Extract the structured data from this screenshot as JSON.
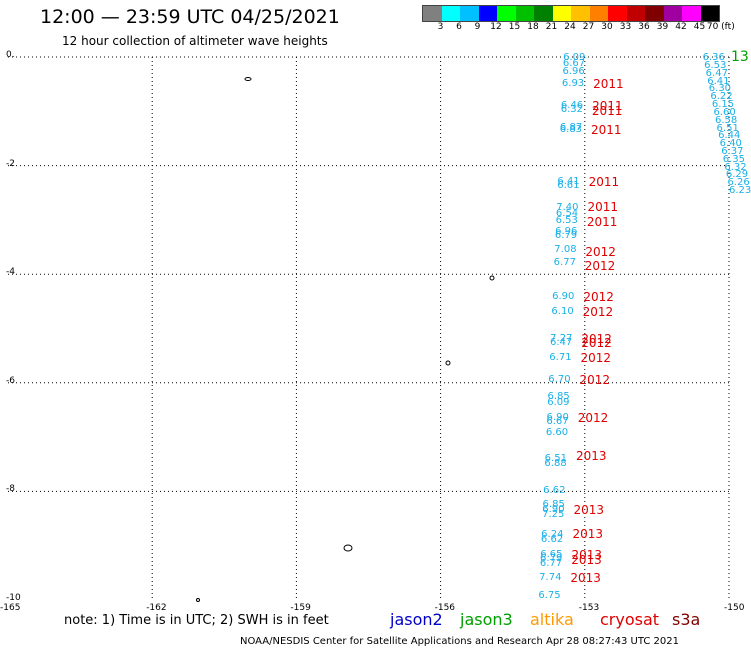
{
  "title": "12:00 — 23:59 UTC 04/25/2021",
  "subtitle": "12 hour collection of altimeter wave heights",
  "legend": {
    "colors": [
      "#808080",
      "#00ffff",
      "#00c0ff",
      "#0000ff",
      "#00ff00",
      "#00c000",
      "#008000",
      "#ffff00",
      "#ffc000",
      "#ff8000",
      "#ff0000",
      "#c00000",
      "#800000",
      "#a000a0",
      "#ff00ff",
      "#000000"
    ],
    "labels": [
      "3",
      "6",
      "9",
      "12",
      "15",
      "18",
      "21",
      "24",
      "27",
      "30",
      "33",
      "36",
      "39",
      "42",
      "45",
      "70 (ft)"
    ]
  },
  "axes": {
    "x_ticks": [
      "-165",
      "-162",
      "-159",
      "-156",
      "-153",
      "-150"
    ],
    "y_ticks": [
      "0.",
      "-2",
      "-4",
      "-6",
      "-8",
      "-10"
    ]
  },
  "observations_main": [
    {
      "lat": -0.02,
      "v": "6.09"
    },
    {
      "lat": -0.13,
      "v": "6.67"
    },
    {
      "lat": -0.27,
      "v": "6.96"
    },
    {
      "lat": -0.5,
      "v": "6.93"
    },
    {
      "lat": -0.9,
      "v": "6.46"
    },
    {
      "lat": -0.98,
      "v": "6.32"
    },
    {
      "lat": -1.3,
      "v": "6.87"
    },
    {
      "lat": -1.35,
      "v": "6.83"
    },
    {
      "lat": -2.3,
      "v": "6.41"
    },
    {
      "lat": -2.37,
      "v": "6.61"
    },
    {
      "lat": -2.78,
      "v": "7.40"
    },
    {
      "lat": -2.9,
      "v": "6.54"
    },
    {
      "lat": -3.02,
      "v": "6.53"
    },
    {
      "lat": -3.22,
      "v": "6.96"
    },
    {
      "lat": -3.3,
      "v": "6.79"
    },
    {
      "lat": -3.55,
      "v": "7.08"
    },
    {
      "lat": -3.8,
      "v": "6.77"
    },
    {
      "lat": -4.42,
      "v": "6.90"
    },
    {
      "lat": -4.7,
      "v": "6.10"
    },
    {
      "lat": -5.2,
      "v": "7.27"
    },
    {
      "lat": -5.27,
      "v": "6.47"
    },
    {
      "lat": -5.55,
      "v": "6.71"
    },
    {
      "lat": -5.95,
      "v": "6.70"
    },
    {
      "lat": -6.27,
      "v": "6.85"
    },
    {
      "lat": -6.37,
      "v": "6.09"
    },
    {
      "lat": -6.65,
      "v": "6.90"
    },
    {
      "lat": -6.73,
      "v": "6.67"
    },
    {
      "lat": -6.93,
      "v": "6.60"
    },
    {
      "lat": -7.4,
      "v": "6.51"
    },
    {
      "lat": -7.5,
      "v": "6.88"
    },
    {
      "lat": -8.0,
      "v": "6.62"
    },
    {
      "lat": -8.25,
      "v": "6.85"
    },
    {
      "lat": -8.35,
      "v": "6.90"
    },
    {
      "lat": -8.43,
      "v": "7.25"
    },
    {
      "lat": -8.8,
      "v": "6.24"
    },
    {
      "lat": -8.9,
      "v": "6.62"
    },
    {
      "lat": -9.17,
      "v": "6.65"
    },
    {
      "lat": -9.25,
      "v": "6.79"
    },
    {
      "lat": -9.33,
      "v": "6.77"
    },
    {
      "lat": -9.6,
      "v": "7.74"
    },
    {
      "lat": -9.93,
      "v": "6.75"
    }
  ],
  "year_labels": [
    {
      "lat": -0.5,
      "v": "2011"
    },
    {
      "lat": -0.9,
      "v": "2011"
    },
    {
      "lat": -1.0,
      "v": "2011"
    },
    {
      "lat": -1.35,
      "v": "2011"
    },
    {
      "lat": -2.3,
      "v": "2011"
    },
    {
      "lat": -2.77,
      "v": "2011"
    },
    {
      "lat": -3.03,
      "v": "2011"
    },
    {
      "lat": -3.6,
      "v": "2012"
    },
    {
      "lat": -3.85,
      "v": "2012"
    },
    {
      "lat": -4.42,
      "v": "2012"
    },
    {
      "lat": -4.7,
      "v": "2012"
    },
    {
      "lat": -5.2,
      "v": "2012"
    },
    {
      "lat": -5.27,
      "v": "2012"
    },
    {
      "lat": -5.55,
      "v": "2012"
    },
    {
      "lat": -5.95,
      "v": "2012"
    },
    {
      "lat": -6.65,
      "v": "2012"
    },
    {
      "lat": -7.35,
      "v": "2013"
    },
    {
      "lat": -8.35,
      "v": "2013"
    },
    {
      "lat": -8.78,
      "v": "2013"
    },
    {
      "lat": -9.17,
      "v": "2013"
    },
    {
      "lat": -9.27,
      "v": "2013"
    },
    {
      "lat": -9.6,
      "v": "2013"
    }
  ],
  "observations_diag": [
    "6.36",
    "6.53",
    "6.47",
    "6.41",
    "6.30",
    "6.22",
    "6.15",
    "6.60",
    "6.58",
    "6.51",
    "6.44",
    "6.40",
    "6.37",
    "6.35",
    "6.32",
    "6.29",
    "6.26",
    "6.23"
  ],
  "edge_label": "13",
  "note": "note: 1) Time is in UTC; 2) SWH is in feet",
  "satellites": [
    {
      "name": "jason2",
      "color": "#0000c8"
    },
    {
      "name": "jason3",
      "color": "#00a000"
    },
    {
      "name": "altika",
      "color": "#ff9900"
    },
    {
      "name": "cryosat",
      "color": "#e00000"
    },
    {
      "name": "s3a",
      "color": "#800000"
    }
  ],
  "credit": "NOAA/NESDIS Center for Satellite Applications and Research   Apr 28 08:27:43 UTC 2021"
}
